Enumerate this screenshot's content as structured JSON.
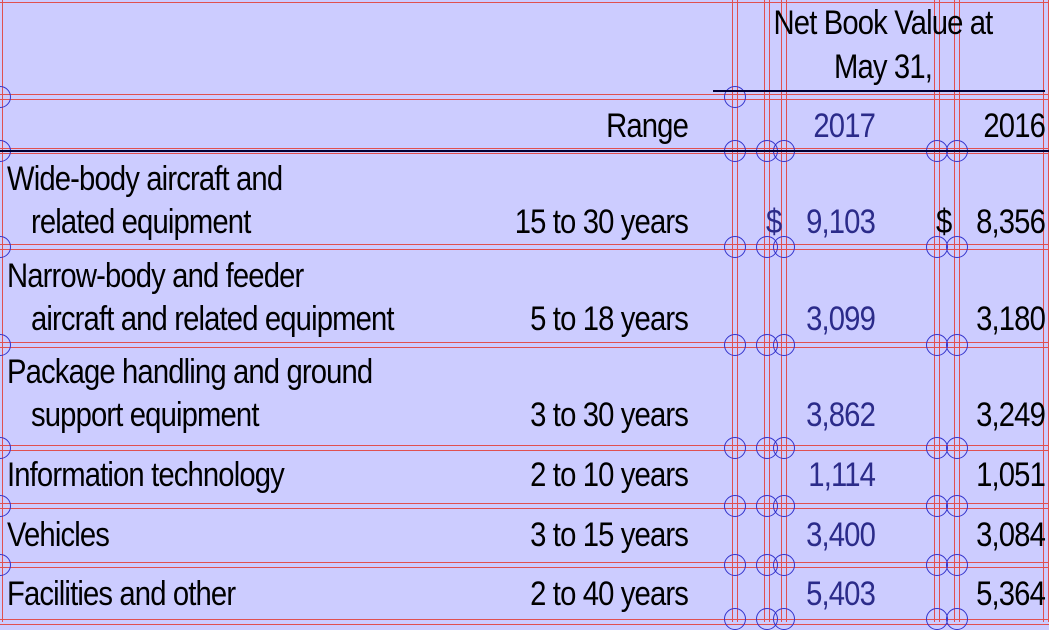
{
  "header": {
    "group_title_line1": "Net Book Value at",
    "group_title_line2": "May 31,",
    "range_label": "Range",
    "year1": "2017",
    "year2": "2016"
  },
  "rows": [
    {
      "category_line1": "Wide-body aircraft and",
      "category_line2": "related equipment",
      "range": "15 to 30 years",
      "currency1": "$",
      "value_2017": "9,103",
      "currency2": "$",
      "value_2016": "8,356"
    },
    {
      "category_line1": "Narrow-body and feeder",
      "category_line2": "aircraft and related equipment",
      "range": "5 to 18 years",
      "value_2017": "3,099",
      "value_2016": "3,180"
    },
    {
      "category_line1": "Package handling and ground",
      "category_line2": "support equipment",
      "range": "3 to 30 years",
      "value_2017": "3,862",
      "value_2016": "3,249"
    },
    {
      "category_line1": "Information technology",
      "range": "2 to 10 years",
      "value_2017": "1,114",
      "value_2016": "1,051"
    },
    {
      "category_line1": "Vehicles",
      "range": "3 to 15 years",
      "value_2017": "3,400",
      "value_2016": "3,084"
    },
    {
      "category_line1": "Facilities and other",
      "range": "2 to 40 years",
      "value_2017": "5,403",
      "value_2016": "5,364"
    }
  ]
}
